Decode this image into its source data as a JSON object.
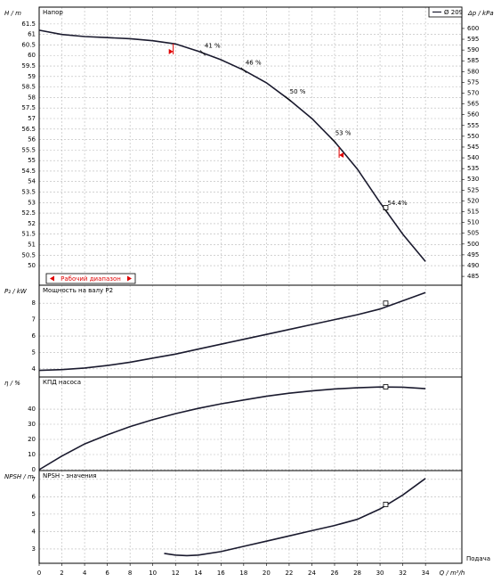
{
  "chart_data": [
    {
      "type": "line",
      "title": "Напор",
      "ylabel": "H / m",
      "y2label": "Δp / kPa",
      "series": [
        {
          "name": "Ø 209",
          "color": "#1a1a2e",
          "x": [
            0,
            2,
            4,
            6,
            8,
            10,
            12,
            14,
            16,
            18,
            20,
            22,
            24,
            26,
            28,
            30,
            32,
            34
          ],
          "values": [
            61.2,
            61.0,
            60.9,
            60.85,
            60.8,
            60.7,
            60.55,
            60.2,
            59.8,
            59.3,
            58.7,
            57.9,
            57.0,
            55.9,
            54.6,
            53.0,
            51.5,
            50.2
          ]
        }
      ],
      "xlim": [
        0,
        37.2
      ],
      "ylim": [
        49.07,
        62.3
      ],
      "yticks": [
        {
          "value": 50,
          "label": "50"
        },
        50.5,
        51,
        51.5,
        52,
        52.5,
        53,
        53.5,
        54,
        54.5,
        55,
        55.5,
        56,
        56.5,
        57,
        57.5,
        58,
        58.5,
        59,
        59.5,
        60,
        60.5,
        61,
        61.5
      ],
      "y2lim": [
        480.9,
        609.9
      ],
      "y2ticks": [
        485,
        490,
        495,
        500,
        505,
        510,
        515,
        520,
        525,
        530,
        535,
        540,
        545,
        550,
        555,
        560,
        565,
        570,
        575,
        580,
        585,
        590,
        595,
        600
      ],
      "annotations": [
        {
          "text": "41 %",
          "x": 14.4
        },
        {
          "text": "46 %",
          "x": 18
        },
        {
          "text": "50 %",
          "x": 21.9
        },
        {
          "text": "53 %",
          "x": 25.9
        },
        {
          "text": "54.4%",
          "x": 30.5
        }
      ],
      "range_label": "Рабочий диапазон",
      "range": [
        11.8,
        26.4
      ],
      "point": {
        "x": 30.5,
        "y": 52.76
      }
    },
    {
      "type": "line",
      "title": "Мощность на валу P2",
      "ylabel": "P₂ / kW",
      "series": [
        {
          "color": "#1a1a2e",
          "x": [
            0,
            2,
            4,
            6,
            8,
            10,
            12,
            14,
            16,
            18,
            20,
            22,
            24,
            26,
            28,
            30,
            32,
            34
          ],
          "values": [
            3.9,
            3.95,
            4.05,
            4.2,
            4.4,
            4.65,
            4.9,
            5.2,
            5.5,
            5.8,
            6.1,
            6.4,
            6.7,
            7.0,
            7.3,
            7.65,
            8.15,
            8.65
          ]
        }
      ],
      "xlim": [
        0,
        37.2
      ],
      "ylim": [
        3.5,
        9.1
      ],
      "yticks": [
        4,
        5,
        6,
        7,
        8
      ],
      "point": {
        "x": 30.5,
        "y": 8.0
      }
    },
    {
      "type": "line",
      "title": "КПД насоса",
      "ylabel": "η / %",
      "series": [
        {
          "color": "#1a1a2e",
          "x": [
            0,
            2,
            4,
            6,
            8,
            10,
            12,
            14,
            16,
            18,
            20,
            22,
            24,
            26,
            28,
            30,
            32,
            34
          ],
          "values": [
            0,
            9,
            17,
            23,
            28.5,
            33,
            37,
            40.5,
            43.5,
            46,
            48.5,
            50.5,
            52,
            53.3,
            54.1,
            54.6,
            54.5,
            53.5
          ]
        }
      ],
      "xlim": [
        0,
        37.2
      ],
      "ylim": [
        -0.6,
        61.2
      ],
      "yticks": [
        0,
        10,
        20,
        30,
        40
      ],
      "point": {
        "x": 30.5,
        "y": 54.7
      }
    },
    {
      "type": "line",
      "title": "NPSH - значения",
      "ylabel": "NPSH / m",
      "xlabel": "Q / m³/h",
      "x2label": "Подача",
      "series": [
        {
          "color": "#1a1a2e",
          "x": [
            11,
            12,
            13,
            14,
            16,
            18,
            20,
            22,
            24,
            26,
            28,
            30,
            32,
            34
          ],
          "values": [
            2.75,
            2.65,
            2.62,
            2.65,
            2.85,
            3.15,
            3.45,
            3.75,
            4.05,
            4.35,
            4.7,
            5.3,
            6.1,
            7.05
          ]
        }
      ],
      "xlim": [
        0,
        37.2
      ],
      "ylim": [
        2.18,
        7.5
      ],
      "yticks": [
        3,
        4,
        5,
        6,
        7
      ],
      "xticks": [
        0,
        2,
        4,
        6,
        8,
        10,
        12,
        14,
        16,
        18,
        20,
        22,
        24,
        26,
        28,
        30,
        32,
        34
      ],
      "point": {
        "x": 30.5,
        "y": 5.56
      }
    }
  ]
}
